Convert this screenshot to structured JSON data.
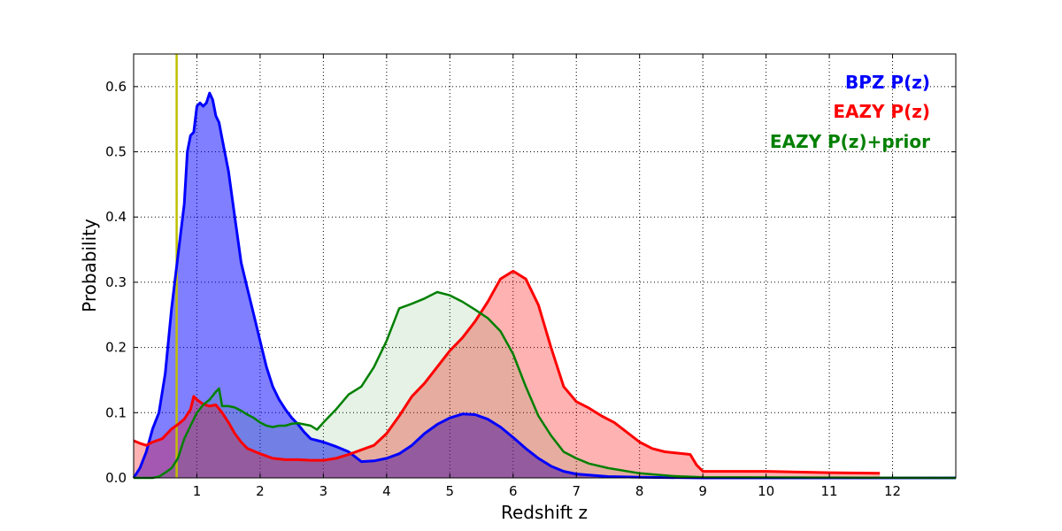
{
  "chart_data": {
    "type": "area",
    "xlabel": "Redshift z",
    "ylabel": "Probability",
    "xlim": [
      0,
      13
    ],
    "ylim": [
      0,
      0.65
    ],
    "grid": true,
    "legend_position": "top-right",
    "x_ticks": [
      1,
      2,
      3,
      4,
      5,
      6,
      7,
      8,
      9,
      10,
      11,
      12
    ],
    "y_ticks": [
      0.0,
      0.1,
      0.2,
      0.3,
      0.4,
      0.5,
      0.6
    ],
    "y_tick_labels": [
      "0.0",
      "0.1",
      "0.2",
      "0.3",
      "0.4",
      "0.5",
      "0.6"
    ],
    "reference_line": {
      "x": 0.68,
      "color": "#bfbf00"
    },
    "series": [
      {
        "name": "BPZ P(z)",
        "color": "#0000ff",
        "fill_color": "#0000ff",
        "fill_opacity": 0.5,
        "points": [
          [
            0,
            0
          ],
          [
            0.1,
            0.015
          ],
          [
            0.2,
            0.04
          ],
          [
            0.3,
            0.075
          ],
          [
            0.4,
            0.1
          ],
          [
            0.5,
            0.16
          ],
          [
            0.6,
            0.26
          ],
          [
            0.7,
            0.34
          ],
          [
            0.8,
            0.42
          ],
          [
            0.85,
            0.5
          ],
          [
            0.9,
            0.525
          ],
          [
            0.95,
            0.53
          ],
          [
            1.0,
            0.57
          ],
          [
            1.05,
            0.575
          ],
          [
            1.1,
            0.57
          ],
          [
            1.15,
            0.575
          ],
          [
            1.2,
            0.59
          ],
          [
            1.25,
            0.58
          ],
          [
            1.3,
            0.555
          ],
          [
            1.35,
            0.545
          ],
          [
            1.4,
            0.52
          ],
          [
            1.5,
            0.47
          ],
          [
            1.6,
            0.4
          ],
          [
            1.7,
            0.33
          ],
          [
            1.8,
            0.29
          ],
          [
            1.9,
            0.25
          ],
          [
            2.0,
            0.21
          ],
          [
            2.1,
            0.17
          ],
          [
            2.2,
            0.14
          ],
          [
            2.3,
            0.12
          ],
          [
            2.4,
            0.105
          ],
          [
            2.5,
            0.092
          ],
          [
            2.6,
            0.082
          ],
          [
            2.7,
            0.07
          ],
          [
            2.8,
            0.06
          ],
          [
            3.0,
            0.055
          ],
          [
            3.2,
            0.048
          ],
          [
            3.4,
            0.04
          ],
          [
            3.6,
            0.025
          ],
          [
            3.8,
            0.026
          ],
          [
            4.0,
            0.03
          ],
          [
            4.2,
            0.037
          ],
          [
            4.4,
            0.05
          ],
          [
            4.6,
            0.068
          ],
          [
            4.8,
            0.082
          ],
          [
            5.0,
            0.092
          ],
          [
            5.2,
            0.098
          ],
          [
            5.4,
            0.097
          ],
          [
            5.6,
            0.09
          ],
          [
            5.8,
            0.078
          ],
          [
            6.0,
            0.062
          ],
          [
            6.2,
            0.045
          ],
          [
            6.4,
            0.03
          ],
          [
            6.6,
            0.018
          ],
          [
            6.8,
            0.01
          ],
          [
            7.0,
            0.006
          ],
          [
            7.5,
            0.002
          ],
          [
            8.0,
            0.001
          ],
          [
            9.0,
            0
          ],
          [
            13.0,
            0
          ]
        ]
      },
      {
        "name": "EAZY P(z)",
        "color": "#ff0000",
        "fill_color": "#ff0000",
        "fill_opacity": 0.3,
        "points": [
          [
            0,
            0.057
          ],
          [
            0.1,
            0.053
          ],
          [
            0.2,
            0.05
          ],
          [
            0.3,
            0.055
          ],
          [
            0.45,
            0.06
          ],
          [
            0.6,
            0.075
          ],
          [
            0.7,
            0.082
          ],
          [
            0.8,
            0.09
          ],
          [
            0.9,
            0.105
          ],
          [
            0.95,
            0.125
          ],
          [
            1.0,
            0.12
          ],
          [
            1.1,
            0.113
          ],
          [
            1.2,
            0.11
          ],
          [
            1.3,
            0.112
          ],
          [
            1.4,
            0.1
          ],
          [
            1.5,
            0.085
          ],
          [
            1.6,
            0.068
          ],
          [
            1.7,
            0.055
          ],
          [
            1.8,
            0.045
          ],
          [
            2.0,
            0.037
          ],
          [
            2.2,
            0.03
          ],
          [
            2.4,
            0.028
          ],
          [
            2.6,
            0.028
          ],
          [
            2.8,
            0.027
          ],
          [
            3.0,
            0.027
          ],
          [
            3.2,
            0.03
          ],
          [
            3.4,
            0.036
          ],
          [
            3.6,
            0.043
          ],
          [
            3.8,
            0.05
          ],
          [
            4.0,
            0.068
          ],
          [
            4.2,
            0.095
          ],
          [
            4.4,
            0.125
          ],
          [
            4.6,
            0.145
          ],
          [
            4.8,
            0.17
          ],
          [
            5.0,
            0.195
          ],
          [
            5.2,
            0.215
          ],
          [
            5.4,
            0.24
          ],
          [
            5.6,
            0.27
          ],
          [
            5.8,
            0.305
          ],
          [
            6.0,
            0.317
          ],
          [
            6.2,
            0.305
          ],
          [
            6.4,
            0.265
          ],
          [
            6.6,
            0.2
          ],
          [
            6.8,
            0.14
          ],
          [
            7.0,
            0.117
          ],
          [
            7.2,
            0.107
          ],
          [
            7.4,
            0.095
          ],
          [
            7.6,
            0.085
          ],
          [
            7.8,
            0.07
          ],
          [
            8.0,
            0.055
          ],
          [
            8.2,
            0.045
          ],
          [
            8.4,
            0.04
          ],
          [
            8.6,
            0.038
          ],
          [
            8.8,
            0.036
          ],
          [
            8.9,
            0.02
          ],
          [
            9.0,
            0.01
          ],
          [
            10.0,
            0.01
          ],
          [
            10.5,
            0.009
          ],
          [
            11.0,
            0.008
          ],
          [
            11.8,
            0.007
          ]
        ]
      },
      {
        "name": "EAZY P(z)+prior",
        "color": "#008000",
        "fill_color": "#008000",
        "fill_opacity": 0.1,
        "points": [
          [
            0,
            0
          ],
          [
            0.3,
            0
          ],
          [
            0.4,
            0.002
          ],
          [
            0.5,
            0.008
          ],
          [
            0.6,
            0.015
          ],
          [
            0.7,
            0.03
          ],
          [
            0.8,
            0.06
          ],
          [
            0.9,
            0.08
          ],
          [
            1.0,
            0.1
          ],
          [
            1.1,
            0.112
          ],
          [
            1.2,
            0.12
          ],
          [
            1.3,
            0.132
          ],
          [
            1.35,
            0.137
          ],
          [
            1.4,
            0.11
          ],
          [
            1.5,
            0.11
          ],
          [
            1.6,
            0.108
          ],
          [
            1.7,
            0.103
          ],
          [
            1.8,
            0.097
          ],
          [
            1.9,
            0.092
          ],
          [
            2.0,
            0.085
          ],
          [
            2.1,
            0.08
          ],
          [
            2.2,
            0.078
          ],
          [
            2.3,
            0.08
          ],
          [
            2.4,
            0.08
          ],
          [
            2.5,
            0.083
          ],
          [
            2.6,
            0.084
          ],
          [
            2.8,
            0.08
          ],
          [
            2.9,
            0.074
          ],
          [
            3.0,
            0.085
          ],
          [
            3.2,
            0.105
          ],
          [
            3.4,
            0.128
          ],
          [
            3.6,
            0.14
          ],
          [
            3.8,
            0.17
          ],
          [
            4.0,
            0.21
          ],
          [
            4.2,
            0.26
          ],
          [
            4.4,
            0.267
          ],
          [
            4.6,
            0.275
          ],
          [
            4.8,
            0.285
          ],
          [
            5.0,
            0.28
          ],
          [
            5.2,
            0.27
          ],
          [
            5.4,
            0.258
          ],
          [
            5.6,
            0.245
          ],
          [
            5.8,
            0.225
          ],
          [
            6.0,
            0.19
          ],
          [
            6.2,
            0.14
          ],
          [
            6.4,
            0.095
          ],
          [
            6.6,
            0.065
          ],
          [
            6.8,
            0.04
          ],
          [
            7.0,
            0.03
          ],
          [
            7.2,
            0.022
          ],
          [
            7.5,
            0.015
          ],
          [
            8.0,
            0.007
          ],
          [
            8.5,
            0.003
          ],
          [
            9.0,
            0.001
          ],
          [
            13.0,
            0
          ]
        ]
      }
    ]
  }
}
